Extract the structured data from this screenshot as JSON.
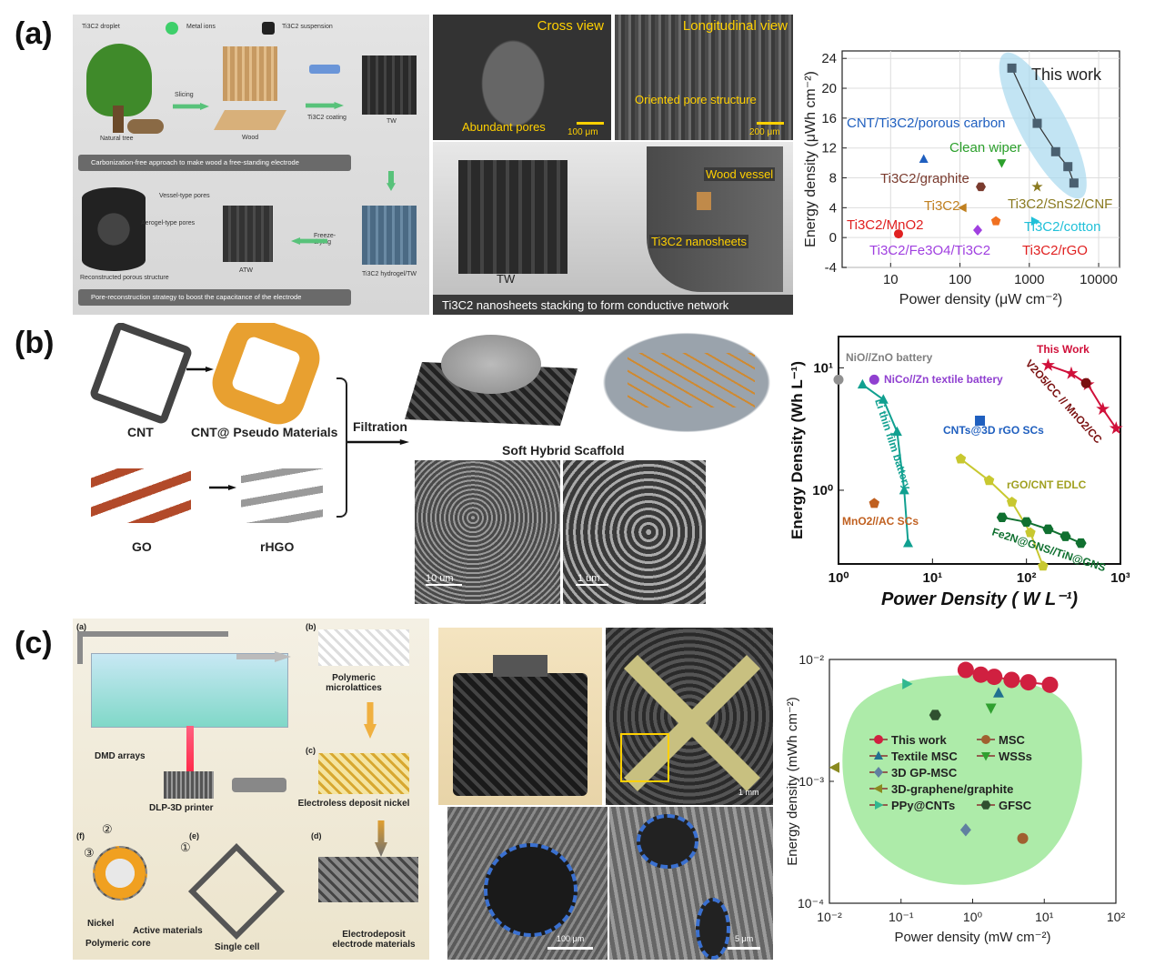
{
  "panels": {
    "a": {
      "letter": "(a)",
      "legend": [
        "Ti3C2 droplet",
        "Metal ions",
        "Ti3C2 suspension"
      ],
      "process": {
        "natural_tree": "Natural tree",
        "slicing": "Slicing",
        "wood": "Wood",
        "coating": "Ti3C2 coating",
        "tw": "TW",
        "carbonization_note": "Carbonization-free approach to make wood a free-standing electrode",
        "vessel_pores": "Vessel-type pores",
        "aerogel_pores": "Aerogel-type pores",
        "freeze_drying": "Freeze-drying",
        "reconstructed": "Reconstructed porous structure",
        "atw": "ATW",
        "hydrogel": "Ti3C2 hydrogel/TW",
        "pore_note": "Pore-reconstruction strategy to boost the capacitance of the electrode"
      },
      "sem": {
        "cross_view": "Cross view",
        "longitudinal_view": "Longitudinal view",
        "abundant_pores": "Abundant pores",
        "oriented_pores": "Oriented pore structure",
        "scale1": "100 μm",
        "scale2": "200 μm",
        "tw_label": "TW",
        "wood_vessel": "Wood vessel",
        "nanosheets": "Ti3C2 nanosheets",
        "caption": "Ti3C2 nanosheets stacking to form conductive network"
      }
    },
    "b": {
      "letter": "(b)",
      "cnt": "CNT",
      "cnt_pseudo": "CNT@ Pseudo Materials",
      "filtration": "Filtration",
      "go": "GO",
      "rhgo": "rHGO",
      "scaffold": "Soft Hybrid Scaffold",
      "scale1": "10 um",
      "scale2": "1 um"
    },
    "c": {
      "letter": "(c)",
      "sub_a": "(a)",
      "sub_b": "(b)",
      "sub_c": "(c)",
      "sub_d": "(d)",
      "sub_e": "(e)",
      "sub_f": "(f)",
      "dmd": "DMD arrays",
      "dlp": "DLP-3D printer",
      "polymeric": "Polymeric microlattices",
      "electroless": "Electroless deposit nickel",
      "electrodeposit": "Electrodeposit electrode materials",
      "single_cell": "Single cell",
      "nickel": "Nickel",
      "active": "Active materials",
      "core": "Polymeric core",
      "n1": "①",
      "n2": "②",
      "n3": "③",
      "scale1": "1 mm",
      "scale2": "100 μm",
      "scale3": "5 μm"
    }
  },
  "chart_data": [
    {
      "type": "scatter",
      "panel": "a",
      "xlabel": "Power density (μW cm⁻²)",
      "ylabel": "Energy density (μWh cm⁻²)",
      "xscale": "log",
      "xlim": [
        2,
        20000
      ],
      "ylim": [
        -4,
        25
      ],
      "xticks": [
        "10",
        "100",
        "1000",
        "10000"
      ],
      "yticks": [
        "-4",
        "0",
        "4",
        "8",
        "12",
        "16",
        "20",
        "24"
      ],
      "grid": true,
      "series": [
        {
          "name": "This work",
          "color": "#4a6070",
          "marker": "square",
          "line": true,
          "points": [
            [
              560,
              22.7
            ],
            [
              1300,
              15.3
            ],
            [
              2400,
              11.5
            ],
            [
              3600,
              9.5
            ],
            [
              4400,
              7.3
            ]
          ]
        },
        {
          "name": "CNT/Ti3C2/porous carbon",
          "color": "#1f5fbf",
          "marker": "triangle",
          "points": [
            [
              30,
              10.5
            ]
          ]
        },
        {
          "name": "Clean wiper",
          "color": "#2ca02c",
          "marker": "triangle-down",
          "points": [
            [
              400,
              10.0
            ]
          ]
        },
        {
          "name": "Ti3C2/graphite",
          "color": "#7a3b2e",
          "marker": "hexagon",
          "points": [
            [
              200,
              6.8
            ]
          ]
        },
        {
          "name": "Ti3C2/SnS2/CNF",
          "color": "#8a7a20",
          "marker": "star",
          "points": [
            [
              1300,
              6.8
            ]
          ]
        },
        {
          "name": "Ti3C2",
          "color": "#c08020",
          "marker": "triangle-left",
          "points": [
            [
              110,
              4.0
            ]
          ]
        },
        {
          "name": "Ti3C2/MnO2",
          "color": "#e02020",
          "marker": "circle",
          "points": [
            [
              13,
              0.5
            ]
          ]
        },
        {
          "name": "Ti3C2/cotton",
          "color": "#20c0d8",
          "marker": "triangle-right",
          "points": [
            [
              1200,
              2.2
            ]
          ]
        },
        {
          "name": "Ti3C2/Fe3O4/Ti3C2",
          "color": "#a040e0",
          "marker": "diamond",
          "points": [
            [
              180,
              1.0
            ]
          ]
        },
        {
          "name": "Ti3C2/rGO",
          "color": "#f07020",
          "marker": "pentagon",
          "points": [
            [
              330,
              2.2
            ]
          ]
        }
      ],
      "annotations": [
        "This work",
        "CNT/Ti3C2/porous carbon",
        "Clean wiper",
        "Ti3C2/graphite",
        "Ti3C2",
        "Ti3C2/SnS2/CNF",
        "Ti3C2/MnO2",
        "Ti3C2/cotton",
        "Ti3C2/Fe3O4/Ti3C2",
        "Ti3C2/rGO"
      ]
    },
    {
      "type": "scatter",
      "panel": "b",
      "xlabel": "Power Density ( W L⁻¹)",
      "ylabel": "Energy Density (Wh L⁻¹)",
      "xscale": "log",
      "yscale": "log",
      "xlim": [
        1,
        1000
      ],
      "ylim": [
        0.25,
        18
      ],
      "xticks": [
        "10⁰",
        "10¹",
        "10²",
        "10³"
      ],
      "yticks": [
        "10⁰",
        "10¹"
      ],
      "series": [
        {
          "name": "This Work",
          "color": "#d0103a",
          "marker": "star",
          "line": true,
          "points": [
            [
              170,
              10.5
            ],
            [
              300,
              9.0
            ],
            [
              450,
              7.3
            ],
            [
              650,
              4.6
            ],
            [
              900,
              3.2
            ]
          ]
        },
        {
          "name": "V2O5/CC // MnO2/CC",
          "color": "#7a1010",
          "marker": "circle",
          "points": [
            [
              430,
              7.5
            ]
          ]
        },
        {
          "name": "NiO//ZnO battery",
          "color": "#909090",
          "marker": "circle",
          "points": [
            [
              1.0,
              8.0
            ]
          ]
        },
        {
          "name": "NiCo//Zn textile battery",
          "color": "#9040d0",
          "marker": "circle",
          "points": [
            [
              2.4,
              8.0
            ]
          ]
        },
        {
          "name": "Li thin film battery",
          "color": "#10a090",
          "marker": "triangle",
          "line": true,
          "points": [
            [
              1.8,
              7.3
            ],
            [
              3.0,
              5.5
            ],
            [
              4.2,
              3.0
            ],
            [
              5.0,
              1.0
            ],
            [
              5.5,
              0.37
            ]
          ]
        },
        {
          "name": "CNTs@3D rGO SCs",
          "color": "#1f5fbf",
          "marker": "square",
          "points": [
            [
              32,
              3.7
            ]
          ]
        },
        {
          "name": "rGO/CNT EDLC",
          "color": "#c8c830",
          "marker": "pentagon",
          "line": true,
          "points": [
            [
              20,
              1.8
            ],
            [
              40,
              1.2
            ],
            [
              70,
              0.8
            ],
            [
              110,
              0.45
            ],
            [
              150,
              0.24
            ]
          ]
        },
        {
          "name": "Fe2N@GNS//TiN@GNS",
          "color": "#107030",
          "marker": "hexagon",
          "line": true,
          "points": [
            [
              55,
              0.6
            ],
            [
              100,
              0.55
            ],
            [
              170,
              0.48
            ],
            [
              260,
              0.42
            ],
            [
              380,
              0.37
            ]
          ]
        },
        {
          "name": "MnO2//AC SCs",
          "color": "#c06020",
          "marker": "pentagon",
          "points": [
            [
              2.4,
              0.78
            ]
          ]
        }
      ],
      "annotations": [
        "NiO//ZnO battery",
        "This Work",
        "NiCo//Zn textile battery",
        "V2O5/CC // MnO2/CC",
        "Li thin film battery",
        "CNTs@3D rGO SCs",
        "rGO/CNT EDLC",
        "MnO2//AC SCs",
        "Fe2N@GNS//TiN@GNS"
      ]
    },
    {
      "type": "scatter",
      "panel": "c",
      "xlabel": "Power density (mW cm⁻²)",
      "ylabel": "Energy density (mWh cm⁻²)",
      "xscale": "log",
      "yscale": "log",
      "xlim": [
        0.01,
        100
      ],
      "ylim": [
        0.0001,
        0.01
      ],
      "xticks": [
        "10⁻²",
        "10⁻¹",
        "10⁰",
        "10¹",
        "10²"
      ],
      "yticks": [
        "10⁻⁴",
        "10⁻³",
        "10⁻²"
      ],
      "legend_position": "center",
      "series": [
        {
          "name": "This work",
          "color": "#d02040",
          "marker": "circle",
          "line": true,
          "points": [
            [
              0.8,
              0.0082
            ],
            [
              1.3,
              0.0075
            ],
            [
              2.0,
              0.0072
            ],
            [
              3.5,
              0.0068
            ],
            [
              6.0,
              0.0065
            ],
            [
              12,
              0.0062
            ]
          ]
        },
        {
          "name": "Textile MSC",
          "color": "#207090",
          "marker": "triangle",
          "points": [
            [
              2.3,
              0.0053
            ]
          ]
        },
        {
          "name": "3D GP-MSC",
          "color": "#6080a0",
          "marker": "diamond",
          "points": [
            [
              0.8,
              0.0004
            ]
          ]
        },
        {
          "name": "3D-graphene/graphite",
          "color": "#8a8a20",
          "marker": "triangle-left",
          "points": [
            [
              0.012,
              0.0013
            ]
          ]
        },
        {
          "name": "PPy@CNTs",
          "color": "#30b890",
          "marker": "triangle-right",
          "points": [
            [
              0.12,
              0.0063
            ]
          ]
        },
        {
          "name": "MSC",
          "color": "#a06030",
          "marker": "circle",
          "points": [
            [
              5.0,
              0.00034
            ]
          ]
        },
        {
          "name": "WSSs",
          "color": "#30a030",
          "marker": "triangle-down",
          "points": [
            [
              1.8,
              0.004
            ]
          ]
        },
        {
          "name": "GFSC",
          "color": "#305030",
          "marker": "hexagon",
          "points": [
            [
              0.3,
              0.0035
            ]
          ]
        }
      ]
    }
  ]
}
